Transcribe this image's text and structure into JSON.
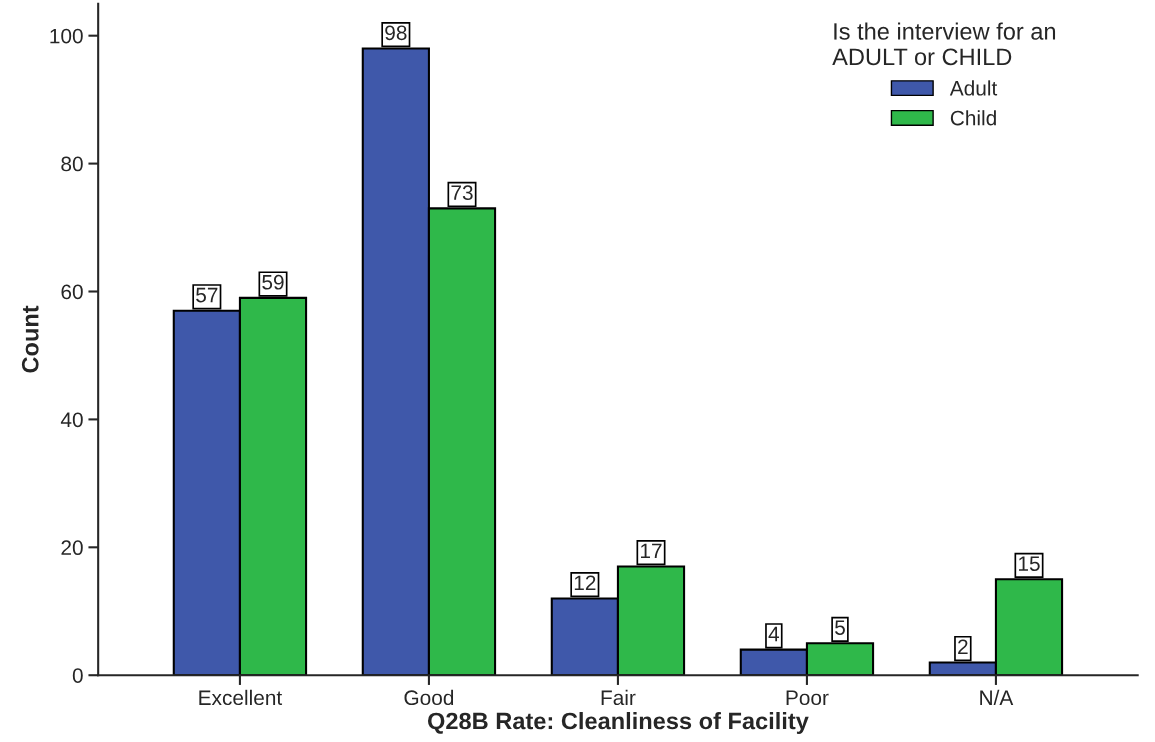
{
  "chart_data": {
    "type": "bar",
    "xlabel": "Q28B Rate: Cleanliness of Facility",
    "ylabel": "Count",
    "categories": [
      "Excellent",
      "Good",
      "Fair",
      "Poor",
      "N/A"
    ],
    "series": [
      {
        "name": "Adult",
        "color": "#3f58aa",
        "values": [
          57,
          98,
          12,
          4,
          2
        ]
      },
      {
        "name": "Child",
        "color": "#2fb84a",
        "values": [
          59,
          73,
          17,
          5,
          15
        ]
      }
    ],
    "legend_title": "Is the interview for an\nADULT or CHILD",
    "legend": "top right",
    "ylim": [
      0,
      105
    ],
    "yticks": [
      0,
      20,
      40,
      60,
      80,
      100
    ],
    "data_labels": true,
    "grid": false
  }
}
